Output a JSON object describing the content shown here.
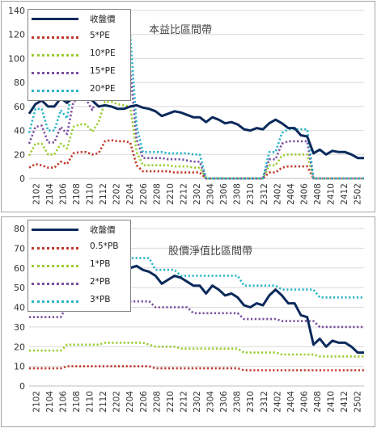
{
  "chart_data": [
    {
      "type": "line",
      "title": "本益比區間帶",
      "ylim": [
        0,
        140
      ],
      "yticks": [
        "0",
        "20",
        "40",
        "60",
        "80",
        "100",
        "120",
        "140"
      ],
      "xticks": [
        "2102",
        "2104",
        "2106",
        "2108",
        "2110",
        "2112",
        "2202",
        "2204",
        "2206",
        "2208",
        "2210",
        "2212",
        "2302",
        "2304",
        "2306",
        "2308",
        "2310",
        "2312",
        "2402",
        "2404",
        "2406",
        "2408",
        "2410",
        "2412",
        "2502"
      ],
      "legend_position": "top-left",
      "grid": "horizontal",
      "series": [
        {
          "name": "收盤價",
          "color": "#0b2a5b",
          "style": "solid",
          "values": [
            54,
            62,
            65,
            60,
            60,
            67,
            63,
            68,
            68,
            68,
            65,
            60,
            61,
            60,
            58,
            58,
            60,
            61,
            59,
            58,
            56,
            52,
            54,
            56,
            55,
            53,
            51,
            51,
            47,
            51,
            49,
            46,
            47,
            45,
            41,
            40,
            42,
            41,
            46,
            49,
            46,
            42,
            42,
            36,
            35,
            21,
            24,
            20,
            23,
            22,
            22,
            20,
            17,
            17
          ]
        },
        {
          "name": "5*PE",
          "color": "#c0392b",
          "style": "dotted",
          "values": [
            9,
            12,
            11,
            9,
            9,
            14,
            12,
            21,
            22,
            22,
            20,
            21,
            31,
            32,
            31,
            31,
            30,
            11,
            6,
            6,
            6,
            6,
            6,
            5,
            5,
            5,
            5,
            5,
            0,
            0,
            0,
            0,
            0,
            0,
            0,
            0,
            0,
            0,
            5,
            5,
            9,
            10,
            10,
            10,
            10,
            0,
            0,
            0,
            0,
            0,
            0,
            0,
            0,
            0
          ]
        },
        {
          "name": "10*PE",
          "color": "#9acd32",
          "style": "dotted",
          "values": [
            19,
            29,
            29,
            20,
            20,
            29,
            25,
            43,
            45,
            45,
            39,
            47,
            64,
            64,
            62,
            61,
            60,
            22,
            11,
            11,
            11,
            11,
            11,
            10,
            10,
            10,
            9,
            9,
            0,
            0,
            0,
            0,
            0,
            0,
            0,
            0,
            0,
            0,
            11,
            11,
            19,
            20,
            20,
            20,
            20,
            0,
            0,
            0,
            0,
            0,
            0,
            0,
            0,
            0
          ]
        },
        {
          "name": "15*PE",
          "color": "#7b4fa0",
          "style": "dotted",
          "values": [
            29,
            43,
            44,
            30,
            30,
            43,
            37,
            64,
            66,
            66,
            57,
            70,
            96,
            96,
            93,
            92,
            90,
            33,
            17,
            17,
            17,
            17,
            16,
            16,
            16,
            15,
            14,
            14,
            0,
            0,
            0,
            0,
            0,
            0,
            0,
            0,
            0,
            0,
            16,
            16,
            29,
            31,
            31,
            31,
            31,
            0,
            0,
            0,
            0,
            0,
            0,
            0,
            0,
            0
          ]
        },
        {
          "name": "20*PE",
          "color": "#2bb5c9",
          "style": "dotted",
          "values": [
            38,
            58,
            58,
            40,
            40,
            57,
            50,
            85,
            88,
            88,
            76,
            94,
            128,
            128,
            124,
            122,
            120,
            44,
            22,
            22,
            22,
            22,
            21,
            21,
            21,
            21,
            20,
            20,
            0,
            0,
            0,
            0,
            0,
            0,
            0,
            0,
            0,
            0,
            22,
            22,
            38,
            41,
            41,
            41,
            41,
            0,
            0,
            0,
            0,
            0,
            0,
            0,
            0,
            0
          ]
        }
      ]
    },
    {
      "type": "line",
      "title": "股價淨值比區間帶",
      "ylim": [
        0,
        80
      ],
      "yticks": [
        "0",
        "10",
        "20",
        "30",
        "40",
        "50",
        "60",
        "70",
        "80"
      ],
      "xticks": [
        "2102",
        "2104",
        "2106",
        "2108",
        "2110",
        "2112",
        "2202",
        "2204",
        "2206",
        "2208",
        "2210",
        "2212",
        "2302",
        "2304",
        "2306",
        "2308",
        "2310",
        "2312",
        "2402",
        "2404",
        "2406",
        "2408",
        "2410",
        "2412",
        "2502"
      ],
      "legend_position": "top-left",
      "grid": "horizontal",
      "series": [
        {
          "name": "收盤價",
          "color": "#0b2a5b",
          "style": "solid",
          "values": [
            54,
            62,
            65,
            60,
            60,
            67,
            63,
            68,
            68,
            68,
            65,
            60,
            57,
            57,
            57,
            60,
            60,
            61,
            59,
            58,
            56,
            52,
            54,
            56,
            55,
            53,
            51,
            51,
            47,
            51,
            49,
            46,
            47,
            45,
            41,
            40,
            42,
            41,
            46,
            49,
            46,
            42,
            42,
            36,
            35,
            21,
            24,
            20,
            23,
            22,
            22,
            20,
            17,
            17
          ]
        },
        {
          "name": "0.5*PB",
          "color": "#c0392b",
          "style": "dotted",
          "values": [
            9,
            9,
            9,
            9,
            9,
            9,
            10,
            10,
            10,
            10,
            10,
            10,
            10,
            10,
            10,
            10,
            10,
            10,
            10,
            10,
            9,
            9,
            9,
            9,
            9,
            9,
            9,
            9,
            9,
            9,
            9,
            9,
            9,
            9,
            8,
            8,
            8,
            8,
            8,
            8,
            8,
            8,
            8,
            8,
            8,
            8,
            8,
            8,
            8,
            8,
            8,
            8,
            8,
            8
          ]
        },
        {
          "name": "1*PB",
          "color": "#9acd32",
          "style": "dotted",
          "values": [
            18,
            18,
            18,
            18,
            18,
            18,
            21,
            21,
            21,
            21,
            21,
            21,
            22,
            22,
            22,
            22,
            22,
            22,
            22,
            21,
            20,
            20,
            20,
            20,
            19,
            19,
            19,
            19,
            19,
            19,
            19,
            19,
            19,
            19,
            17,
            17,
            17,
            17,
            17,
            17,
            16,
            16,
            16,
            16,
            16,
            16,
            15,
            15,
            15,
            15,
            15,
            15,
            15,
            15
          ]
        },
        {
          "name": "2*PB",
          "color": "#7b4fa0",
          "style": "dotted",
          "values": [
            35,
            35,
            35,
            35,
            35,
            35,
            41,
            41,
            41,
            41,
            43,
            43,
            43,
            43,
            43,
            43,
            43,
            43,
            43,
            43,
            40,
            40,
            40,
            40,
            40,
            40,
            37,
            37,
            37,
            37,
            37,
            37,
            37,
            37,
            34,
            34,
            34,
            34,
            34,
            34,
            33,
            33,
            33,
            33,
            33,
            33,
            30,
            30,
            30,
            30,
            30,
            30,
            30,
            30
          ]
        },
        {
          "name": "3*PB",
          "color": "#2bb5c9",
          "style": "dotted",
          "values": [
            53,
            53,
            53,
            53,
            53,
            53,
            62,
            62,
            62,
            62,
            64,
            64,
            65,
            65,
            65,
            65,
            65,
            65,
            65,
            65,
            59,
            59,
            59,
            59,
            56,
            56,
            56,
            56,
            56,
            56,
            56,
            56,
            56,
            56,
            51,
            51,
            51,
            51,
            51,
            51,
            49,
            49,
            49,
            49,
            49,
            49,
            45,
            45,
            45,
            45,
            45,
            45,
            45,
            45
          ]
        }
      ]
    }
  ]
}
